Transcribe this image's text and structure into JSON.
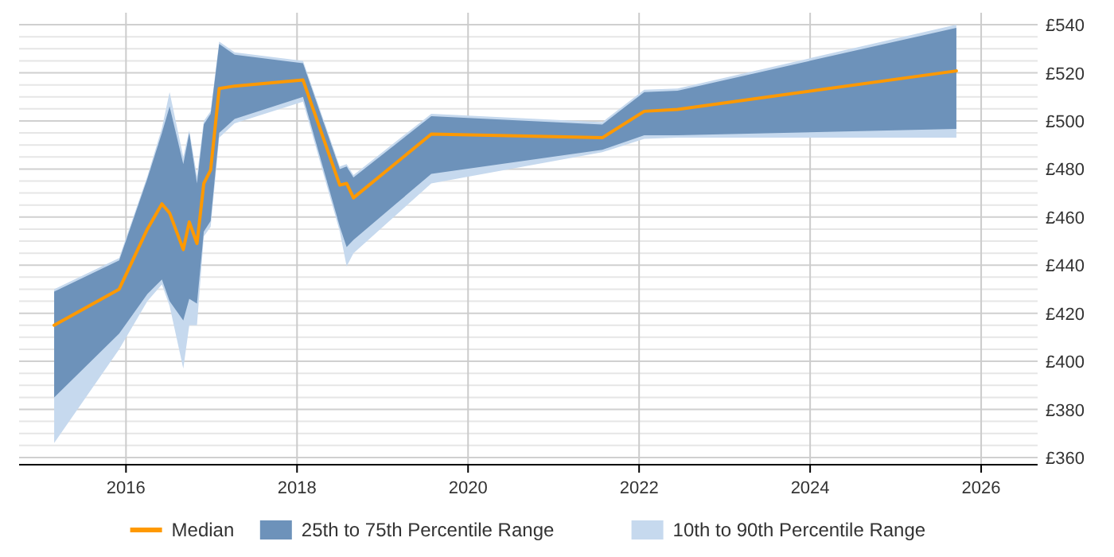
{
  "chart_data": {
    "type": "line",
    "x": [
      2015.16,
      2015.92,
      2016.25,
      2016.42,
      2016.51,
      2016.67,
      2016.74,
      2016.83,
      2016.91,
      2016.99,
      2017.09,
      2017.27,
      2018.07,
      2018.5,
      2018.58,
      2018.66,
      2019.57,
      2021.57,
      2022.06,
      2022.45,
      2025.71
    ],
    "series": [
      {
        "name": "10th to 90th Percentile Range",
        "color": "#c6d9ee",
        "values": [
          null,
          null,
          null,
          null,
          null,
          null,
          null,
          null,
          null,
          null,
          null,
          null,
          null,
          null,
          null,
          null,
          null,
          null,
          null,
          null,
          null
        ],
        "lower": [
          366,
          405,
          425,
          432,
          423,
          397,
          415,
          415,
          452,
          456,
          493,
          499,
          508,
          454,
          439.5,
          445,
          474,
          487,
          492.5,
          493,
          493
        ],
        "upper": [
          430,
          443,
          477,
          497,
          512,
          485,
          496,
          477,
          500,
          504,
          533,
          528.5,
          525,
          481,
          482,
          477.5,
          503,
          499.5,
          513,
          513.5,
          540
        ]
      },
      {
        "name": "25th to 75th Percentile Range",
        "color": "#6d92ba",
        "values": [
          null,
          null,
          null,
          null,
          null,
          null,
          null,
          null,
          null,
          null,
          null,
          null,
          null,
          null,
          null,
          null,
          null,
          null,
          null,
          null,
          null
        ],
        "lower": [
          385,
          411.5,
          428,
          434,
          425,
          417,
          426,
          424,
          454,
          458.4,
          495,
          500.8,
          510,
          456,
          447.5,
          450.5,
          478,
          488,
          494,
          494,
          496.7
        ],
        "upper": [
          429,
          442,
          476,
          495,
          506,
          482,
          495,
          474,
          498.6,
          503,
          532,
          527.5,
          524,
          480,
          481,
          476.5,
          502,
          498.5,
          512,
          512.6,
          538.7
        ]
      },
      {
        "name": "Median",
        "type": "line",
        "color": "#ff9900",
        "values": [
          415,
          430,
          455,
          465.5,
          461.7,
          446.5,
          458,
          449,
          474,
          479.6,
          513.5,
          514.5,
          517,
          473.3,
          474,
          468,
          494.5,
          493,
          504,
          504.8,
          520.8
        ]
      }
    ],
    "xlim": [
      2014.75,
      2026.66
    ],
    "xticks": [
      2016,
      2018,
      2020,
      2022,
      2024,
      2026
    ],
    "ylim": [
      357,
      545
    ],
    "yticks": [
      {
        "value": 360,
        "label": "£360"
      },
      {
        "value": 365,
        "label": null
      },
      {
        "value": 370,
        "label": null
      },
      {
        "value": 375,
        "label": null
      },
      {
        "value": 380,
        "label": "£380"
      },
      {
        "value": 385,
        "label": null
      },
      {
        "value": 390,
        "label": null
      },
      {
        "value": 395,
        "label": null
      },
      {
        "value": 400,
        "label": "£400"
      },
      {
        "value": 405,
        "label": null
      },
      {
        "value": 410,
        "label": null
      },
      {
        "value": 415,
        "label": null
      },
      {
        "value": 420,
        "label": "£420"
      },
      {
        "value": 425,
        "label": null
      },
      {
        "value": 430,
        "label": null
      },
      {
        "value": 435,
        "label": null
      },
      {
        "value": 440,
        "label": "£440"
      },
      {
        "value": 445,
        "label": null
      },
      {
        "value": 450,
        "label": null
      },
      {
        "value": 455,
        "label": null
      },
      {
        "value": 460,
        "label": "£460"
      },
      {
        "value": 465,
        "label": null
      },
      {
        "value": 470,
        "label": null
      },
      {
        "value": 475,
        "label": null
      },
      {
        "value": 480,
        "label": "£480"
      },
      {
        "value": 485,
        "label": null
      },
      {
        "value": 490,
        "label": null
      },
      {
        "value": 495,
        "label": null
      },
      {
        "value": 500,
        "label": "£500"
      },
      {
        "value": 505,
        "label": null
      },
      {
        "value": 510,
        "label": null
      },
      {
        "value": 515,
        "label": null
      },
      {
        "value": 520,
        "label": "£520"
      },
      {
        "value": 525,
        "label": null
      },
      {
        "value": 530,
        "label": null
      },
      {
        "value": 535,
        "label": null
      },
      {
        "value": 540,
        "label": "£540"
      }
    ],
    "grid": true,
    "legend": "bottom"
  }
}
